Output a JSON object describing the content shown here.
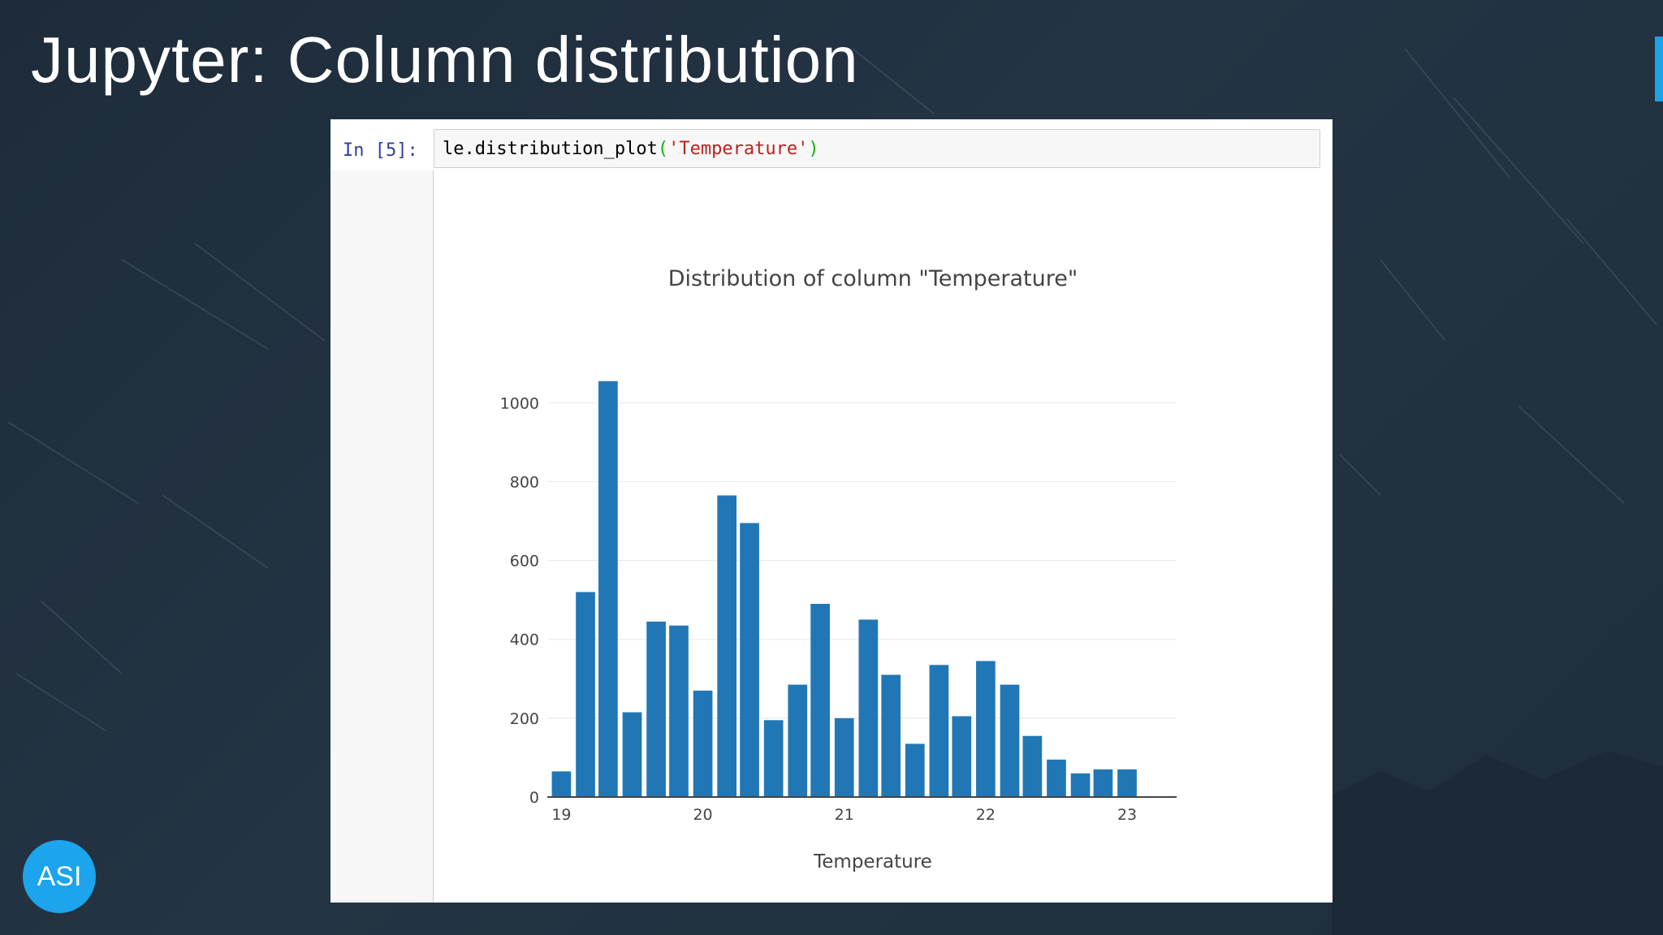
{
  "slide": {
    "title": "Jupyter: Column distribution",
    "logo_text": "ASI",
    "accent_color": "#1ca4ec"
  },
  "notebook": {
    "prompt": "In [5]:",
    "code": {
      "func": "le.distribution_plot",
      "open_paren": "(",
      "arg": "'Temperature'",
      "close_paren": ")"
    }
  },
  "chart_data": {
    "type": "bar",
    "title": "Distribution of column \"Temperature\"",
    "xlabel": "Temperature",
    "ylabel": "",
    "bar_color": "#2177b6",
    "grid": true,
    "x_ticks": [
      "19",
      "20",
      "21",
      "22",
      "23"
    ],
    "y_ticks": [
      "0",
      "200",
      "400",
      "600",
      "800",
      "1000"
    ],
    "xlim": [
      18.9,
      23.35
    ],
    "ylim": [
      0,
      1050
    ],
    "x": [
      19.0,
      19.17,
      19.33,
      19.5,
      19.67,
      19.83,
      20.0,
      20.17,
      20.33,
      20.5,
      20.67,
      20.83,
      21.0,
      21.17,
      21.33,
      21.5,
      21.67,
      21.83,
      22.0,
      22.17,
      22.33,
      22.5,
      22.67,
      22.83,
      23.0
    ],
    "values": [
      65,
      520,
      1055,
      215,
      445,
      435,
      270,
      765,
      695,
      195,
      285,
      490,
      200,
      450,
      310,
      135,
      335,
      205,
      345,
      285,
      155,
      95,
      60,
      70,
      70
    ]
  }
}
